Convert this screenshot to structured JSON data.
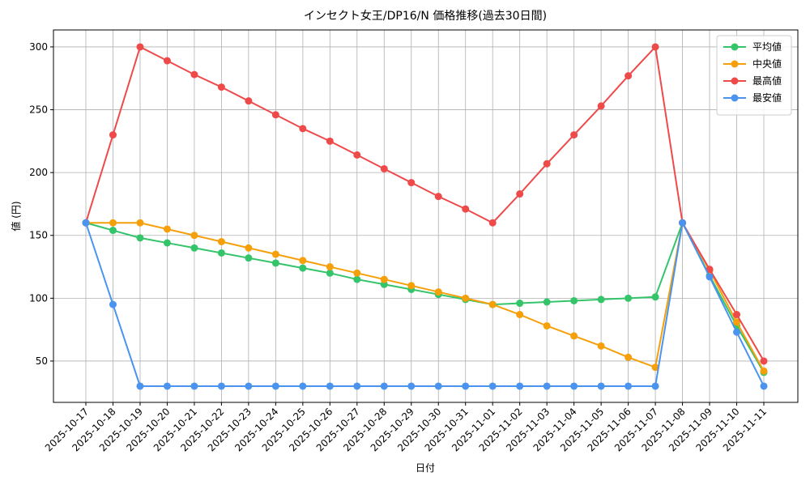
{
  "chart_data": {
    "type": "line",
    "title": "インセクト女王/DP16/N 価格推移(過去30日間)",
    "x_label": "日付",
    "y_label": "値 (円)",
    "categories": [
      "2025-10-17",
      "2025-10-18",
      "2025-10-19",
      "2025-10-20",
      "2025-10-21",
      "2025-10-22",
      "2025-10-23",
      "2025-10-24",
      "2025-10-25",
      "2025-10-26",
      "2025-10-27",
      "2025-10-28",
      "2025-10-29",
      "2025-10-30",
      "2025-10-31",
      "2025-11-01",
      "2025-11-02",
      "2025-11-03",
      "2025-11-04",
      "2025-11-05",
      "2025-11-06",
      "2025-11-07",
      "2025-11-08",
      "2025-11-09",
      "2025-11-10",
      "2025-11-11"
    ],
    "series": [
      {
        "name": "平均値",
        "color": "#34c46a",
        "values": [
          160,
          154,
          148,
          144,
          140,
          136,
          132,
          128,
          124,
          120,
          115,
          111,
          107,
          103,
          99,
          95,
          96,
          97,
          98,
          99,
          100,
          101,
          160,
          118,
          78,
          41
        ]
      },
      {
        "name": "中央値",
        "color": "#f5a00a",
        "values": [
          160,
          160,
          160,
          155,
          150,
          145,
          140,
          135,
          130,
          125,
          120,
          115,
          110,
          105,
          100,
          95,
          87,
          78,
          70,
          62,
          53,
          45,
          160,
          122,
          81,
          42
        ]
      },
      {
        "name": "最高値",
        "color": "#ef4a4a",
        "values": [
          160,
          230,
          300,
          289,
          278,
          268,
          257,
          246,
          235,
          225,
          214,
          203,
          192,
          181,
          171,
          160,
          183,
          207,
          230,
          253,
          277,
          300,
          160,
          123,
          87,
          50
        ]
      },
      {
        "name": "最安値",
        "color": "#4a94ef",
        "values": [
          160,
          95,
          30,
          30,
          30,
          30,
          30,
          30,
          30,
          30,
          30,
          30,
          30,
          30,
          30,
          30,
          30,
          30,
          30,
          30,
          30,
          30,
          160,
          117,
          73,
          30
        ]
      }
    ],
    "ylim": [
      17.1,
      313.5
    ],
    "yticks": [
      50,
      100,
      150,
      200,
      250,
      300
    ],
    "grid": true,
    "legend": "upper right"
  }
}
